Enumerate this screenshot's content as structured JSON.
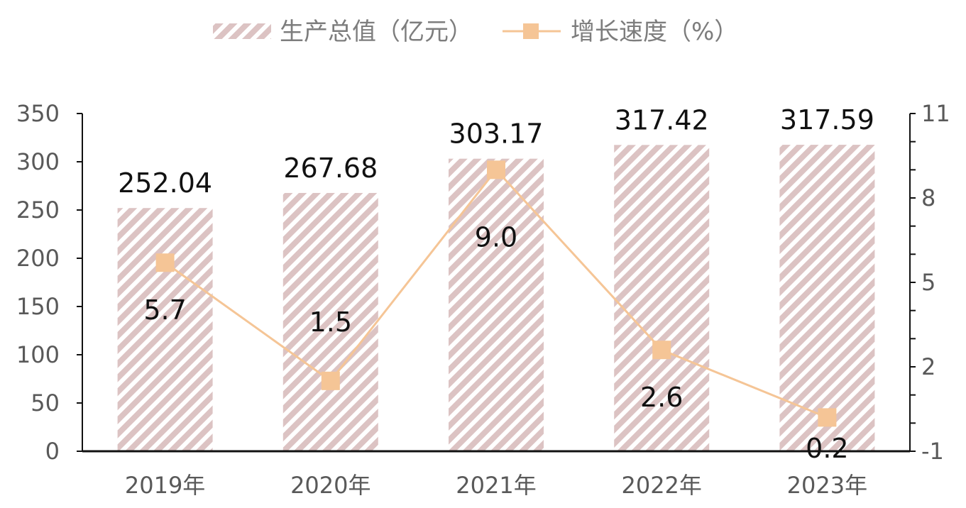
{
  "chart_data": {
    "type": "bar",
    "categories": [
      "2019年",
      "2020年",
      "2021年",
      "2022年",
      "2023年"
    ],
    "series": [
      {
        "name": "生产总值（亿元）",
        "type": "bar",
        "axis": "left",
        "values": [
          252.04,
          267.68,
          303.17,
          317.42,
          317.59
        ],
        "labels": [
          "252.04",
          "267.68",
          "303.17",
          "317.42",
          "317.59"
        ],
        "color": "#dcc3c3"
      },
      {
        "name": "增长速度（%）",
        "type": "line",
        "axis": "right",
        "values": [
          5.7,
          1.5,
          9.0,
          2.6,
          0.2
        ],
        "labels": [
          "5.7",
          "1.5",
          "9.0",
          "2.6",
          "0.2"
        ],
        "color": "#f5c596"
      }
    ],
    "left_axis": {
      "ylim": [
        0,
        350
      ],
      "ticks": [
        "0",
        "50",
        "100",
        "150",
        "200",
        "250",
        "300",
        "350"
      ]
    },
    "right_axis": {
      "ylim": [
        -1,
        11
      ],
      "ticks": [
        "-1",
        "2",
        "5",
        "8",
        "11"
      ]
    },
    "legend": {
      "position": "top-center"
    },
    "grid": false
  }
}
